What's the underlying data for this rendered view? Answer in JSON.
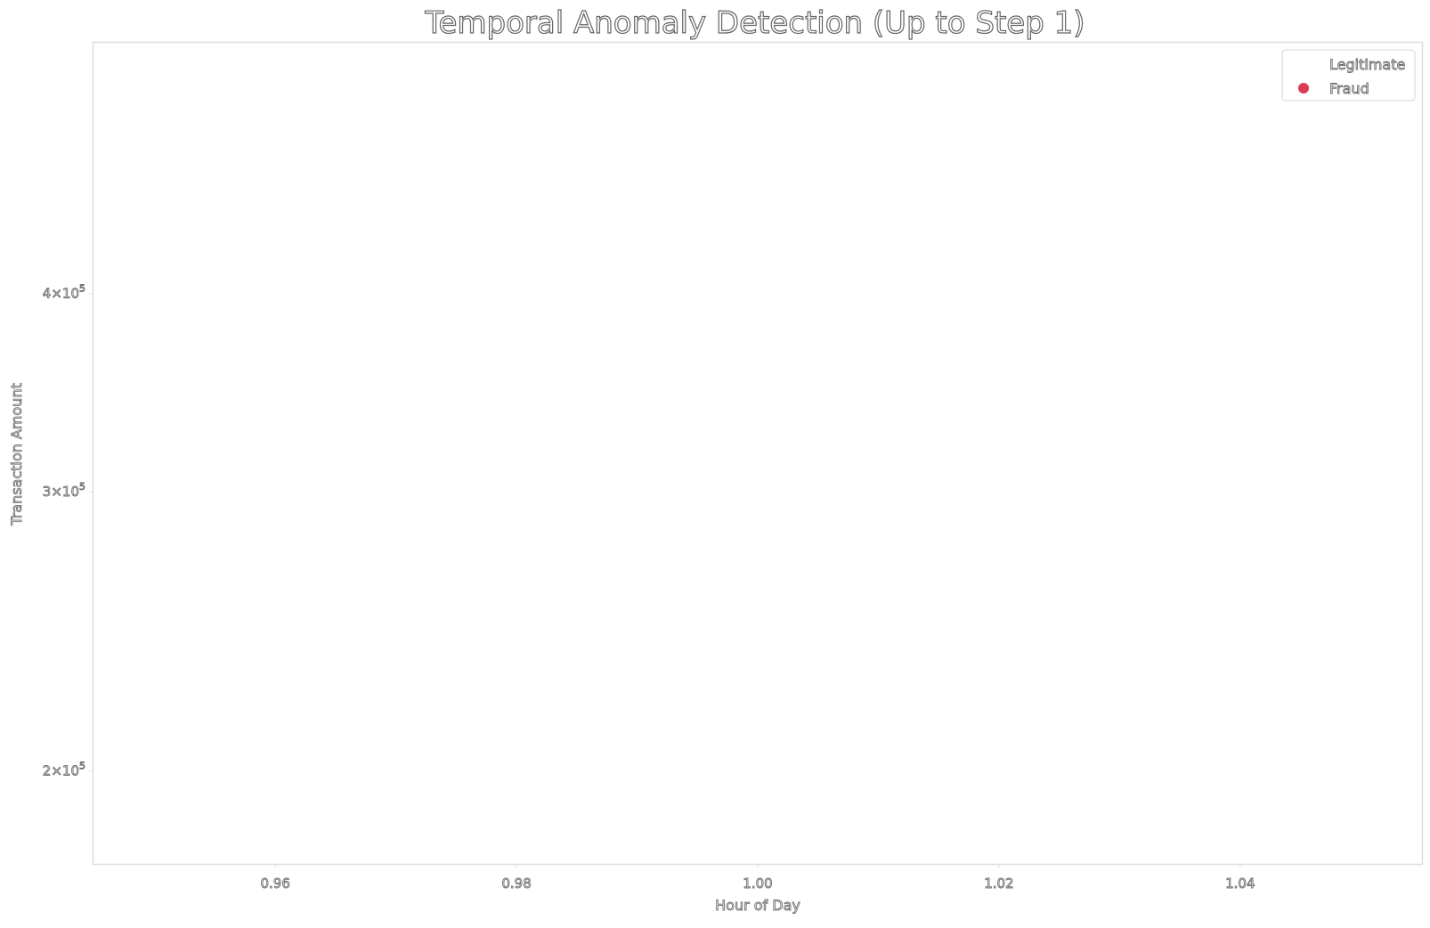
{
  "chart_data": {
    "type": "scatter",
    "title": "Temporal Anomaly Detection (Up to Step 1)",
    "xlabel": "Hour of Day",
    "ylabel": "Transaction Amount",
    "xlim": [
      0.945,
      1.055
    ],
    "ylim": [
      175000,
      575000
    ],
    "yscale": "log",
    "x_ticks": [
      {
        "value": 0.96,
        "label": "0.96"
      },
      {
        "value": 0.98,
        "label": "0.98"
      },
      {
        "value": 1.0,
        "label": "1.00"
      },
      {
        "value": 1.02,
        "label": "1.02"
      },
      {
        "value": 1.04,
        "label": "1.04"
      }
    ],
    "y_ticks": [
      {
        "value": 200000,
        "mantissa": "2",
        "base": "10",
        "exponent": "5"
      },
      {
        "value": 300000,
        "mantissa": "3",
        "base": "10",
        "exponent": "5"
      },
      {
        "value": 400000,
        "mantissa": "4",
        "base": "10",
        "exponent": "5"
      }
    ],
    "grid": false,
    "legend_position": "top-right",
    "series": [
      {
        "name": "Legitimate",
        "color": "#ffffff",
        "points": []
      },
      {
        "name": "Fraud",
        "color": "#dc3b55",
        "points": []
      }
    ]
  }
}
